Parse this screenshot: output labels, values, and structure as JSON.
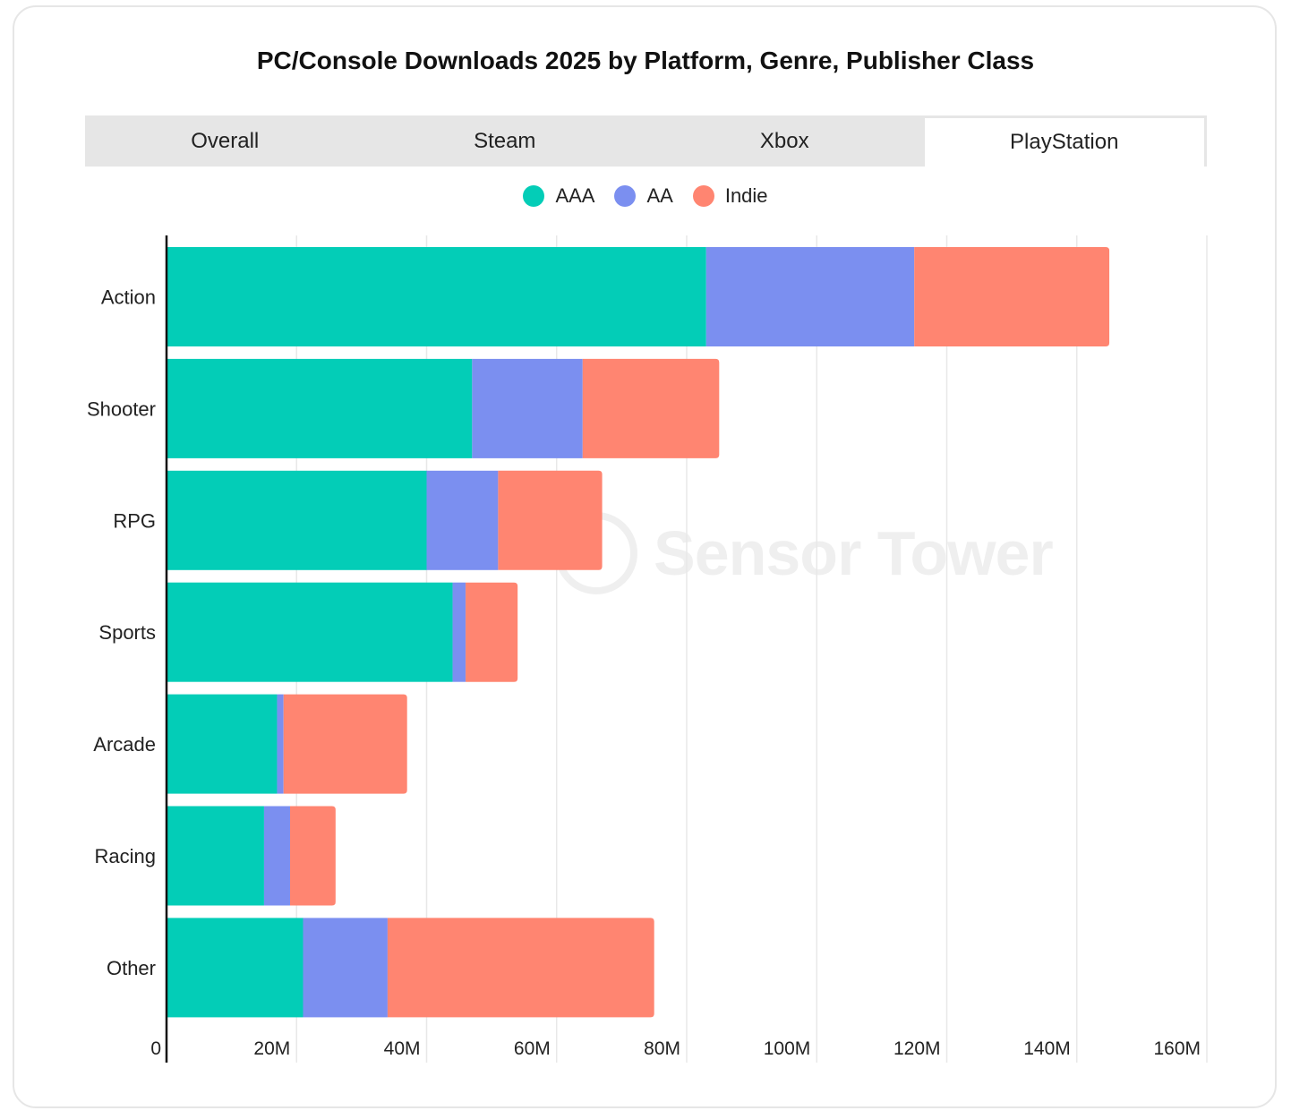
{
  "chart_data": {
    "type": "bar",
    "orientation": "horizontal",
    "stacked": true,
    "title": "PC/Console Downloads 2025 by Platform, Genre, Publisher Class",
    "categories": [
      "Action",
      "Shooter",
      "RPG",
      "Sports",
      "Arcade",
      "Racing",
      "Other"
    ],
    "series": [
      {
        "name": "AAA",
        "color": "#03cdb7",
        "values": [
          83,
          47,
          40,
          44,
          17,
          15,
          21
        ]
      },
      {
        "name": "AA",
        "color": "#7b8ff0",
        "values": [
          32,
          17,
          11,
          2,
          1,
          4,
          13
        ]
      },
      {
        "name": "Indie",
        "color": "#ff8571",
        "values": [
          30,
          21,
          16,
          8,
          19,
          7,
          41
        ]
      }
    ],
    "xlim": [
      0,
      160
    ],
    "xticks": [
      0,
      20,
      40,
      60,
      80,
      100,
      120,
      140,
      160
    ],
    "xtick_labels": [
      "0",
      "20M",
      "40M",
      "60M",
      "80M",
      "100M",
      "120M",
      "140M",
      "160M"
    ],
    "xlabel": "",
    "ylabel": "",
    "grid": "vertical",
    "legend_position": "top-center"
  },
  "tabs": [
    {
      "label": "Overall",
      "active": false
    },
    {
      "label": "Steam",
      "active": false
    },
    {
      "label": "Xbox",
      "active": false
    },
    {
      "label": "PlayStation",
      "active": true
    }
  ],
  "watermark": "Sensor Tower"
}
